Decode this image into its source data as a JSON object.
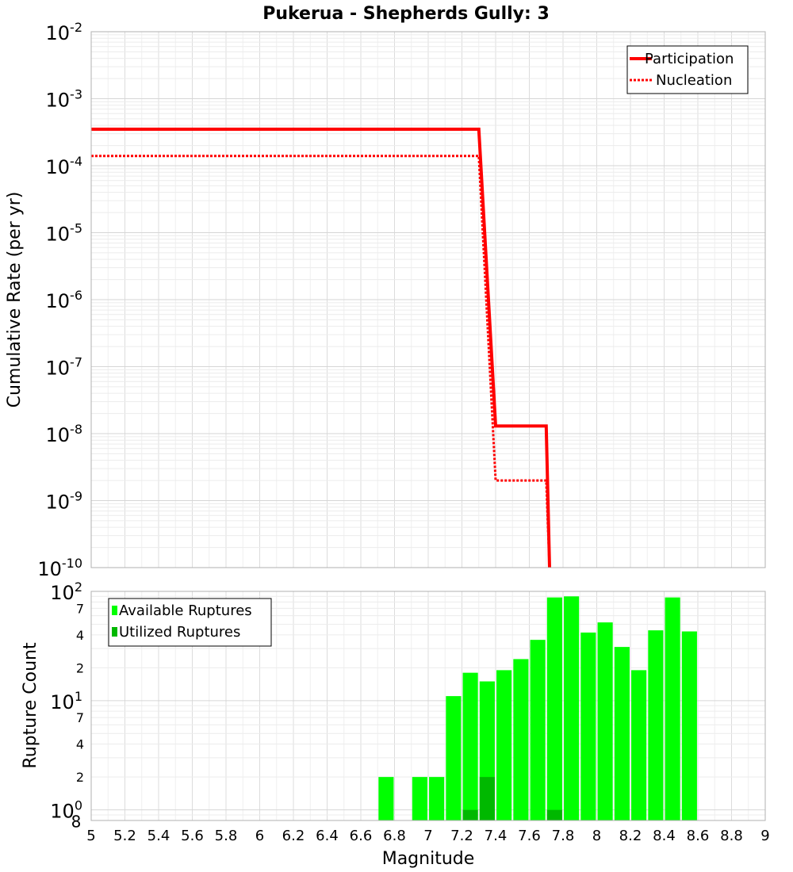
{
  "chart_data": [
    {
      "type": "line",
      "title": "Pukerua - Shepherds Gully: 3",
      "xlabel": "",
      "ylabel": "Cumulative Rate (per yr)",
      "xlim": [
        5,
        9
      ],
      "ylim": [
        1e-10,
        0.01
      ],
      "yscale": "log",
      "y_tick_labels": [
        {
          "base": "10",
          "exp": "-10"
        },
        {
          "base": "10",
          "exp": "-9"
        },
        {
          "base": "10",
          "exp": "-8"
        },
        {
          "base": "10",
          "exp": "-7"
        },
        {
          "base": "10",
          "exp": "-6"
        },
        {
          "base": "10",
          "exp": "-5"
        },
        {
          "base": "10",
          "exp": "-4"
        },
        {
          "base": "10",
          "exp": "-3"
        },
        {
          "base": "10",
          "exp": "-2"
        }
      ],
      "grid": true,
      "legend_position": "top-right",
      "series": [
        {
          "name": "Participation",
          "style": "solid",
          "color": "#ff0000",
          "points": [
            [
              5.0,
              0.00035
            ],
            [
              7.3,
              0.00035
            ],
            [
              7.4,
              1.3e-08
            ],
            [
              7.7,
              1.3e-08
            ],
            [
              7.72,
              1e-10
            ]
          ]
        },
        {
          "name": "Nucleation",
          "style": "dotted",
          "color": "#ff0000",
          "points": [
            [
              5.0,
              0.00014
            ],
            [
              7.3,
              0.00014
            ],
            [
              7.4,
              2e-09
            ],
            [
              7.7,
              2e-09
            ],
            [
              7.72,
              1e-10
            ]
          ]
        }
      ]
    },
    {
      "type": "bar",
      "xlabel": "Magnitude",
      "ylabel": "Rupture Count",
      "xlim": [
        5,
        9
      ],
      "ylim": [
        0.8,
        100
      ],
      "yscale": "log",
      "x_ticks": [
        "5",
        "5.2",
        "5.4",
        "5.6",
        "5.8",
        "6",
        "6.2",
        "6.4",
        "6.6",
        "6.8",
        "7",
        "7.2",
        "7.4",
        "7.6",
        "7.8",
        "8",
        "8.2",
        "8.4",
        "8.6",
        "8.8",
        "9"
      ],
      "y_major_labels": [
        {
          "base": "10",
          "exp": "0",
          "extra": "8"
        },
        {
          "base": "10",
          "exp": "1"
        },
        {
          "base": "10",
          "exp": "2"
        }
      ],
      "y_minor_labels": [
        "2",
        "4",
        "7",
        "2",
        "4",
        "7"
      ],
      "grid": true,
      "legend_position": "top-left",
      "bar_width": 0.09,
      "series": [
        {
          "name": "Available Ruptures",
          "color": "#00ff00",
          "x": [
            6.75,
            6.95,
            7.05,
            7.15,
            7.25,
            7.35,
            7.45,
            7.55,
            7.65,
            7.75,
            7.85,
            7.95,
            8.05,
            8.15,
            8.25,
            8.35,
            8.45,
            8.55
          ],
          "values": [
            2,
            2,
            2,
            11,
            18,
            15,
            19,
            24,
            36,
            88,
            90,
            42,
            52,
            31,
            19,
            44,
            88,
            43
          ]
        },
        {
          "name": "Utilized Ruptures",
          "color": "#00b800",
          "x": [
            7.25,
            7.35,
            7.75
          ],
          "values": [
            1,
            2,
            1
          ]
        }
      ]
    }
  ]
}
